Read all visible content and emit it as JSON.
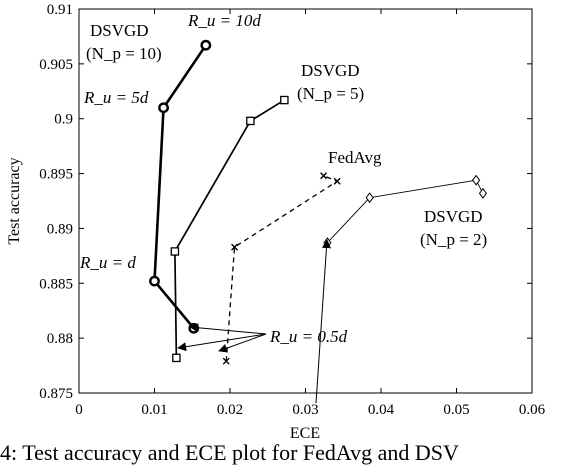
{
  "chart_data": {
    "type": "line",
    "xlabel": "ECE",
    "ylabel": "Test accuracy",
    "xlim": [
      0,
      0.06
    ],
    "ylim": [
      0.875,
      0.91
    ],
    "xticks": [
      0,
      0.01,
      0.02,
      0.03,
      0.04,
      0.05,
      0.06
    ],
    "yticks": [
      0.875,
      0.88,
      0.885,
      0.89,
      0.895,
      0.9,
      0.905,
      0.91
    ],
    "xtick_labels": [
      "0",
      "0.01",
      "0.02",
      "0.03",
      "0.04",
      "0.05",
      "0.06"
    ],
    "ytick_labels": [
      "0.875",
      "0.88",
      "0.885",
      "0.89",
      "0.895",
      "0.9",
      "0.905",
      "0.91"
    ],
    "grid": false,
    "series": [
      {
        "name": "DSVGD (N_p = 10)",
        "marker": "circle",
        "line": "solid-thick",
        "x": [
          0.0152,
          0.01,
          0.0112,
          0.0168
        ],
        "y": [
          0.8809,
          0.8852,
          0.901,
          0.9067
        ]
      },
      {
        "name": "DSVGD (N_p = 5)",
        "marker": "square",
        "line": "solid-medium",
        "x": [
          0.0129,
          0.0127,
          0.0227,
          0.0272
        ],
        "y": [
          0.8782,
          0.8879,
          0.8998,
          0.9017
        ]
      },
      {
        "name": "DSVGD (N_p = 2)",
        "marker": "diamond",
        "line": "solid-thin",
        "x": [
          0.0329,
          0.0385,
          0.0526,
          0.0535
        ],
        "y": [
          0.8887,
          0.8928,
          0.8944,
          0.8932
        ]
      },
      {
        "name": "FedAvg",
        "marker": "x",
        "line": "dashed",
        "x": [
          0.0195,
          0.0206,
          0.0342,
          0.0324
        ],
        "y": [
          0.8779,
          0.8883,
          0.8943,
          0.8948
        ]
      }
    ],
    "annotations": [
      {
        "text": "DSVGD",
        "sub": "(N_p = 10)"
      },
      {
        "text": "R_u = 10d"
      },
      {
        "text": "R_u = 5d"
      },
      {
        "text": "R_u = d"
      },
      {
        "text": "DSVGD",
        "sub": "(N_p = 5)"
      },
      {
        "text": "FedAvg"
      },
      {
        "text": "DSVGD",
        "sub": "(N_p = 2)"
      },
      {
        "text": "R_u = 0.5d"
      }
    ]
  },
  "caption": "4: Test accuracy and ECE plot for FedAvg and DSV"
}
